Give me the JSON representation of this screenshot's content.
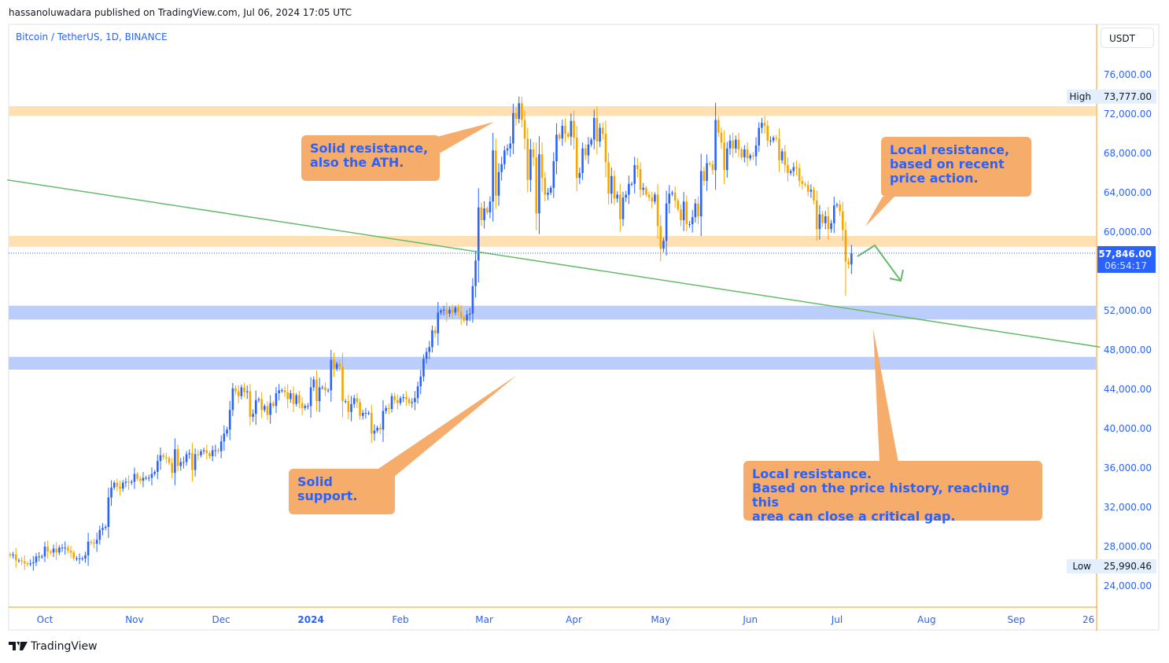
{
  "header": {
    "published": "hassanoluwadara published on TradingView.com, Jul 06, 2024 17:05 UTC"
  },
  "symbol": "Bitcoin / TetherUS, 1D, BINANCE",
  "currency": "USDT",
  "brand": "TradingView",
  "colors": {
    "up": "#2962ff",
    "down": "#f7a600",
    "resistance_band": "#ffe0b2",
    "support_band": "#bbcdfb",
    "trendline": "#66bb6a",
    "note_bg": "#f6ac6a",
    "note_text": "#2962ff",
    "axis": "#ff9800"
  },
  "annotations": [
    {
      "text": "Solid resistance,\nalso the ATH."
    },
    {
      "text": "Local resistance,\nbased on recent\nprice action."
    },
    {
      "text": "Solid\nsupport."
    },
    {
      "text": "Local resistance.\nBased on the price history, reaching this\narea can close a critical gap."
    }
  ],
  "chart_data": {
    "type": "candlestick",
    "title": "Bitcoin / TetherUS, 1D, BINANCE",
    "start_date": "2023-09-19",
    "interval": "1D",
    "close_thousands": [
      27.1,
      27.2,
      26.6,
      26.6,
      26.5,
      26.3,
      26.2,
      26.3,
      26.4,
      27.0,
      27.0,
      27.0,
      28.0,
      27.5,
      27.4,
      27.8,
      27.4,
      27.9,
      27.9,
      27.9,
      27.6,
      27.4,
      26.8,
      26.8,
      26.8,
      26.8,
      27.1,
      28.5,
      28.4,
      28.3,
      28.7,
      29.7,
      29.9,
      30.0,
      33.0,
      34.0,
      34.5,
      34.1,
      33.9,
      34.5,
      34.6,
      34.5,
      34.6,
      35.4,
      34.9,
      34.7,
      35.0,
      35.0,
      35.0,
      35.4,
      35.6,
      36.7,
      37.3,
      37.1,
      37.0,
      36.5,
      35.5,
      37.9,
      36.2,
      36.6,
      36.6,
      37.4,
      37.5,
      35.8,
      37.4,
      37.3,
      37.7,
      37.8,
      37.5,
      37.2,
      37.8,
      37.8,
      37.7,
      38.7,
      39.5,
      39.9,
      41.9,
      44.1,
      43.8,
      43.3,
      44.2,
      43.7,
      43.8,
      41.2,
      41.5,
      42.9,
      43.0,
      41.9,
      42.3,
      41.4,
      42.6,
      42.3,
      43.6,
      43.9,
      43.9,
      43.7,
      43.0,
      43.6,
      42.5,
      43.4,
      42.6,
      42.1,
      42.3,
      42.3,
      44.2,
      45.0,
      42.8,
      44.2,
      44.2,
      43.9,
      43.9,
      47.0,
      46.1,
      46.6,
      46.3,
      42.8,
      42.8,
      41.7,
      42.5,
      43.1,
      42.7,
      41.3,
      41.6,
      41.6,
      41.6,
      39.5,
      39.8,
      40.1,
      39.9,
      41.8,
      42.1,
      42.0,
      43.3,
      42.9,
      42.6,
      43.1,
      43.2,
      43.0,
      42.6,
      42.7,
      43.1,
      44.3,
      45.3,
      47.1,
      47.8,
      48.3,
      50.0,
      49.7,
      51.8,
      52.0,
      52.1,
      51.7,
      52.1,
      51.8,
      52.3,
      51.9,
      51.3,
      51.0,
      51.6,
      51.7,
      54.5,
      57.1,
      62.5,
      61.2,
      62.4,
      62.0,
      63.1,
      68.3,
      63.7,
      66.1,
      66.9,
      68.3,
      68.5,
      69.0,
      72.1,
      71.5,
      73.1,
      71.4,
      69.5,
      65.3,
      68.4,
      67.6,
      61.9,
      67.9,
      65.5,
      63.8,
      64.0,
      64.5,
      67.2,
      69.9,
      69.5,
      70.8,
      70.0,
      69.7,
      71.3,
      69.6,
      65.5,
      66.0,
      68.5,
      67.8,
      68.9,
      69.4,
      71.6,
      69.2,
      70.6,
      70.0,
      67.1,
      63.9,
      65.7,
      63.4,
      63.8,
      61.3,
      63.5,
      63.8,
      64.9,
      64.9,
      66.8,
      66.4,
      64.3,
      64.5,
      63.8,
      63.5,
      63.1,
      63.8,
      60.6,
      58.3,
      59.1,
      62.9,
      63.9,
      64.0,
      63.2,
      62.3,
      61.2,
      63.1,
      60.8,
      60.8,
      61.5,
      62.9,
      61.6,
      66.2,
      65.2,
      67.0,
      66.9,
      66.3,
      71.4,
      70.1,
      69.1,
      66.3,
      68.5,
      69.3,
      68.5,
      69.4,
      68.4,
      67.6,
      68.4,
      67.5,
      67.8,
      67.7,
      68.8,
      70.6,
      71.1,
      70.8,
      69.3,
      69.3,
      69.6,
      69.5,
      67.3,
      68.2,
      66.8,
      66.0,
      66.2,
      66.6,
      66.5,
      65.2,
      64.9,
      64.8,
      64.1,
      64.3,
      63.2,
      60.3,
      61.8,
      60.9,
      61.6,
      60.3,
      60.9,
      62.7,
      62.8,
      62.1,
      60.2,
      57.0,
      56.7,
      57.846
    ],
    "high": 73777.0,
    "low": 25990.46,
    "last_price": "57,846.00",
    "countdown": "06:54:17",
    "high_label": "High",
    "low_label": "Low",
    "high_value": "73,777.00",
    "low_value": "25,990.46",
    "y_ticks": [
      "76,000.00",
      "72,000.00",
      "68,000.00",
      "64,000.00",
      "60,000.00",
      "52,000.00",
      "48,000.00",
      "44,000.00",
      "40,000.00",
      "36,000.00",
      "32,000.00",
      "28,000.00",
      "24,000.00"
    ],
    "y_tick_values": [
      76000,
      72000,
      68000,
      64000,
      60000,
      52000,
      48000,
      44000,
      40000,
      36000,
      32000,
      28000,
      24000
    ],
    "x_ticks": [
      "Oct",
      "Nov",
      "Dec",
      "2024",
      "Feb",
      "Mar",
      "Apr",
      "May",
      "Jun",
      "Jul",
      "Aug",
      "Sep",
      "26"
    ],
    "x_tick_dates": [
      "2023-10-01",
      "2023-11-01",
      "2023-12-01",
      "2024-01-01",
      "2024-02-01",
      "2024-03-01",
      "2024-04-01",
      "2024-05-01",
      "2024-06-01",
      "2024-07-01",
      "2024-08-01",
      "2024-09-01",
      "2024-09-26"
    ],
    "zones": [
      {
        "kind": "resistance",
        "from": 71800,
        "to": 72800
      },
      {
        "kind": "resistance",
        "from": 58500,
        "to": 59600
      },
      {
        "kind": "support",
        "from": 51100,
        "to": 52500
      },
      {
        "kind": "support",
        "from": 46000,
        "to": 47300
      }
    ],
    "trendline": {
      "from": {
        "date": "2023-09-18",
        "price": 65300
      },
      "to": {
        "date": "2024-09-30",
        "price": 48300
      }
    },
    "ylim": [
      20000,
      81000
    ]
  }
}
